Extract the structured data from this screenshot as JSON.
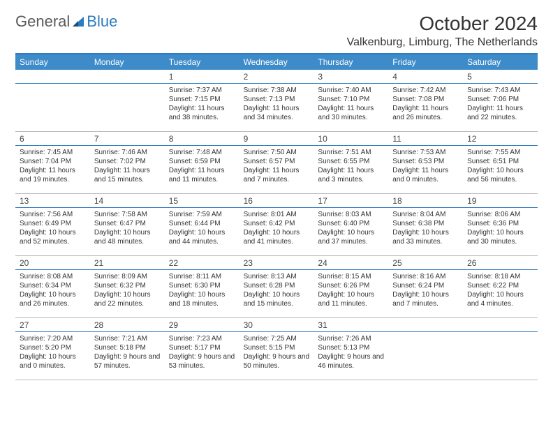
{
  "logo": {
    "text1": "General",
    "text2": "Blue"
  },
  "title": "October 2024",
  "location": "Valkenburg, Limburg, The Netherlands",
  "colors": {
    "header_bg": "#3d8bc9",
    "header_border": "#2d7bc0",
    "text": "#333333",
    "logo_gray": "#5a5a5a",
    "logo_blue": "#2d7bc0"
  },
  "day_names": [
    "Sunday",
    "Monday",
    "Tuesday",
    "Wednesday",
    "Thursday",
    "Friday",
    "Saturday"
  ],
  "weeks": [
    [
      null,
      null,
      {
        "n": "1",
        "sr": "7:37 AM",
        "ss": "7:15 PM",
        "dl": "11 hours and 38 minutes."
      },
      {
        "n": "2",
        "sr": "7:38 AM",
        "ss": "7:13 PM",
        "dl": "11 hours and 34 minutes."
      },
      {
        "n": "3",
        "sr": "7:40 AM",
        "ss": "7:10 PM",
        "dl": "11 hours and 30 minutes."
      },
      {
        "n": "4",
        "sr": "7:42 AM",
        "ss": "7:08 PM",
        "dl": "11 hours and 26 minutes."
      },
      {
        "n": "5",
        "sr": "7:43 AM",
        "ss": "7:06 PM",
        "dl": "11 hours and 22 minutes."
      }
    ],
    [
      {
        "n": "6",
        "sr": "7:45 AM",
        "ss": "7:04 PM",
        "dl": "11 hours and 19 minutes."
      },
      {
        "n": "7",
        "sr": "7:46 AM",
        "ss": "7:02 PM",
        "dl": "11 hours and 15 minutes."
      },
      {
        "n": "8",
        "sr": "7:48 AM",
        "ss": "6:59 PM",
        "dl": "11 hours and 11 minutes."
      },
      {
        "n": "9",
        "sr": "7:50 AM",
        "ss": "6:57 PM",
        "dl": "11 hours and 7 minutes."
      },
      {
        "n": "10",
        "sr": "7:51 AM",
        "ss": "6:55 PM",
        "dl": "11 hours and 3 minutes."
      },
      {
        "n": "11",
        "sr": "7:53 AM",
        "ss": "6:53 PM",
        "dl": "11 hours and 0 minutes."
      },
      {
        "n": "12",
        "sr": "7:55 AM",
        "ss": "6:51 PM",
        "dl": "10 hours and 56 minutes."
      }
    ],
    [
      {
        "n": "13",
        "sr": "7:56 AM",
        "ss": "6:49 PM",
        "dl": "10 hours and 52 minutes."
      },
      {
        "n": "14",
        "sr": "7:58 AM",
        "ss": "6:47 PM",
        "dl": "10 hours and 48 minutes."
      },
      {
        "n": "15",
        "sr": "7:59 AM",
        "ss": "6:44 PM",
        "dl": "10 hours and 44 minutes."
      },
      {
        "n": "16",
        "sr": "8:01 AM",
        "ss": "6:42 PM",
        "dl": "10 hours and 41 minutes."
      },
      {
        "n": "17",
        "sr": "8:03 AM",
        "ss": "6:40 PM",
        "dl": "10 hours and 37 minutes."
      },
      {
        "n": "18",
        "sr": "8:04 AM",
        "ss": "6:38 PM",
        "dl": "10 hours and 33 minutes."
      },
      {
        "n": "19",
        "sr": "8:06 AM",
        "ss": "6:36 PM",
        "dl": "10 hours and 30 minutes."
      }
    ],
    [
      {
        "n": "20",
        "sr": "8:08 AM",
        "ss": "6:34 PM",
        "dl": "10 hours and 26 minutes."
      },
      {
        "n": "21",
        "sr": "8:09 AM",
        "ss": "6:32 PM",
        "dl": "10 hours and 22 minutes."
      },
      {
        "n": "22",
        "sr": "8:11 AM",
        "ss": "6:30 PM",
        "dl": "10 hours and 18 minutes."
      },
      {
        "n": "23",
        "sr": "8:13 AM",
        "ss": "6:28 PM",
        "dl": "10 hours and 15 minutes."
      },
      {
        "n": "24",
        "sr": "8:15 AM",
        "ss": "6:26 PM",
        "dl": "10 hours and 11 minutes."
      },
      {
        "n": "25",
        "sr": "8:16 AM",
        "ss": "6:24 PM",
        "dl": "10 hours and 7 minutes."
      },
      {
        "n": "26",
        "sr": "8:18 AM",
        "ss": "6:22 PM",
        "dl": "10 hours and 4 minutes."
      }
    ],
    [
      {
        "n": "27",
        "sr": "7:20 AM",
        "ss": "5:20 PM",
        "dl": "10 hours and 0 minutes."
      },
      {
        "n": "28",
        "sr": "7:21 AM",
        "ss": "5:18 PM",
        "dl": "9 hours and 57 minutes."
      },
      {
        "n": "29",
        "sr": "7:23 AM",
        "ss": "5:17 PM",
        "dl": "9 hours and 53 minutes."
      },
      {
        "n": "30",
        "sr": "7:25 AM",
        "ss": "5:15 PM",
        "dl": "9 hours and 50 minutes."
      },
      {
        "n": "31",
        "sr": "7:26 AM",
        "ss": "5:13 PM",
        "dl": "9 hours and 46 minutes."
      },
      null,
      null
    ]
  ],
  "labels": {
    "sunrise": "Sunrise:",
    "sunset": "Sunset:",
    "daylight": "Daylight:"
  }
}
